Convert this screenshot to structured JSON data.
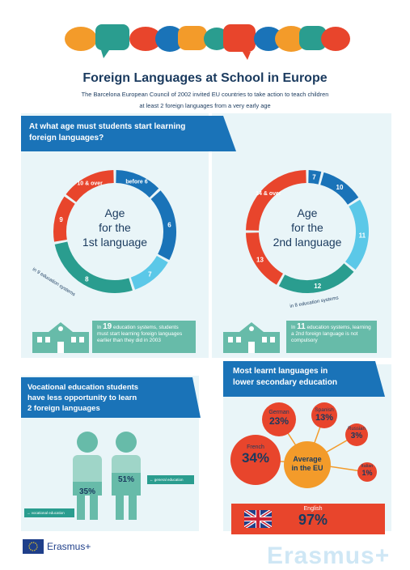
{
  "header": {
    "title": "Foreign Languages at School in Europe",
    "subtitle_line1": "The Barcelona European Council of 2002 invited EU countries to take action to teach children",
    "subtitle_line2": "at least 2 foreign languages from a very early age"
  },
  "colors": {
    "blue": "#1a73b8",
    "teal": "#2a9d8f",
    "red": "#e8452c",
    "orange": "#f39b2a",
    "light_blue": "#5bc8e8",
    "panel": "#e9f5f8",
    "green": "#67bba9"
  },
  "age_section": {
    "banner_line1": "At what age must students start learning",
    "banner_line2": "foreign languages?",
    "ring1": {
      "center_l1": "Age",
      "center_l2": "for the",
      "center_l3": "1st language",
      "segments": [
        {
          "label": "before 6",
          "share": 0.13,
          "color": "#1a73b8"
        },
        {
          "label": "6",
          "share": 0.2,
          "color": "#1a73b8"
        },
        {
          "label": "7",
          "share": 0.12,
          "color": "#5bc8e8"
        },
        {
          "label": "8",
          "share": 0.27,
          "color": "#2a9d8f"
        },
        {
          "label": "9",
          "share": 0.13,
          "color": "#e8452c"
        },
        {
          "label": "10 & over",
          "share": 0.15,
          "color": "#e8452c"
        }
      ],
      "bracket_label": "in 9 education systems",
      "info_number": "19",
      "info_text": "education systems, students must start learning foreign languages earlier than they did in 2003"
    },
    "ring2": {
      "center_l1": "Age",
      "center_l2": "for the",
      "center_l3": "2nd language",
      "segments": [
        {
          "label": "7",
          "share": 0.04,
          "color": "#1a73b8"
        },
        {
          "label": "10",
          "share": 0.12,
          "color": "#1a73b8"
        },
        {
          "label": "11",
          "share": 0.2,
          "color": "#5bc8e8"
        },
        {
          "label": "12",
          "share": 0.22,
          "color": "#2a9d8f"
        },
        {
          "label": "13",
          "share": 0.17,
          "color": "#e8452c"
        },
        {
          "label": "14 & over",
          "share": 0.25,
          "color": "#e8452c"
        }
      ],
      "bracket_label": "in 8 education systems",
      "info_number": "11",
      "info_text": "education systems, learning a 2nd foreign language is not compulsory"
    }
  },
  "vocational": {
    "banner_line1": "Vocational education students",
    "banner_line2": "have less opportunity to learn",
    "banner_line3": "2 foreign languages",
    "vocational_pct": "35%",
    "general_pct": "51%",
    "vocational_label": "→ vocational education",
    "general_label": "← general education"
  },
  "languages": {
    "banner_line1": "Most learnt languages in",
    "banner_line2": "lower secondary education",
    "center_l1": "Average",
    "center_l2": "in the EU",
    "items": [
      {
        "name": "French",
        "value": "34%"
      },
      {
        "name": "German",
        "value": "23%"
      },
      {
        "name": "Spanish",
        "value": "13%"
      },
      {
        "name": "Russian",
        "value": "3%"
      },
      {
        "name": "Italian",
        "value": "1%"
      }
    ],
    "english": {
      "name": "English",
      "value": "97%"
    }
  },
  "footer": {
    "brand": "Erasmus+",
    "watermark": "Erasmus+"
  }
}
